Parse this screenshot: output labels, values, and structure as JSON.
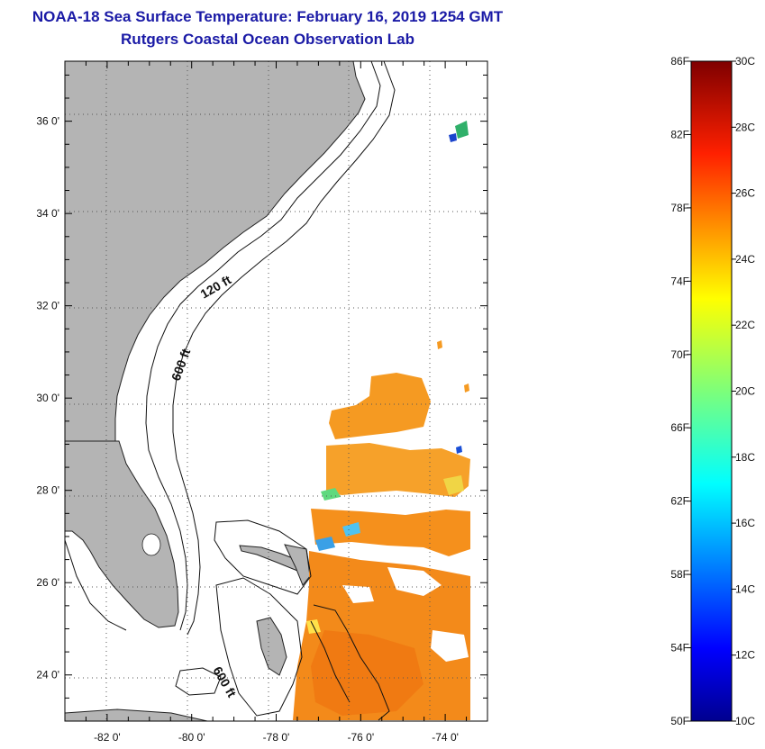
{
  "title": {
    "line1": "NOAA-18 Sea Surface Temperature:  February 16, 2019 1254 GMT",
    "line2": "Rutgers Coastal Ocean Observation Lab"
  },
  "map": {
    "lat_labels": [
      "36 0'",
      "34 0'",
      "32 0'",
      "30 0'",
      "28 0'",
      "26 0'",
      "24 0'"
    ],
    "lon_labels": [
      "-82 0'",
      "-80 0'",
      "-78 0'",
      "-76 0'",
      "-74 0'"
    ],
    "lat_values": [
      36,
      34,
      32,
      30,
      28,
      26,
      24
    ],
    "lon_values": [
      -82,
      -80,
      -78,
      -76,
      -74
    ],
    "lat_range": [
      23,
      37.3
    ],
    "lon_range": [
      -83,
      -73
    ],
    "depth_labels": [
      "120 ft",
      "600 ft",
      "600 ft"
    ],
    "colors": {
      "land": "#b4b4b4",
      "water": "#ffffff",
      "sst_warm": "#f5901c"
    }
  },
  "colorbar": {
    "f_labels": [
      "86F",
      "82F",
      "78F",
      "74F",
      "70F",
      "66F",
      "62F",
      "58F",
      "54F",
      "50F"
    ],
    "f_values": [
      86,
      82,
      78,
      74,
      70,
      66,
      62,
      58,
      54,
      50
    ],
    "c_labels": [
      "30C",
      "28C",
      "26C",
      "24C",
      "22C",
      "20C",
      "18C",
      "16C",
      "14C",
      "12C",
      "10C"
    ],
    "c_values": [
      30,
      28,
      26,
      24,
      22,
      20,
      18,
      16,
      14,
      12,
      10
    ],
    "range_f": [
      50,
      86
    ]
  }
}
